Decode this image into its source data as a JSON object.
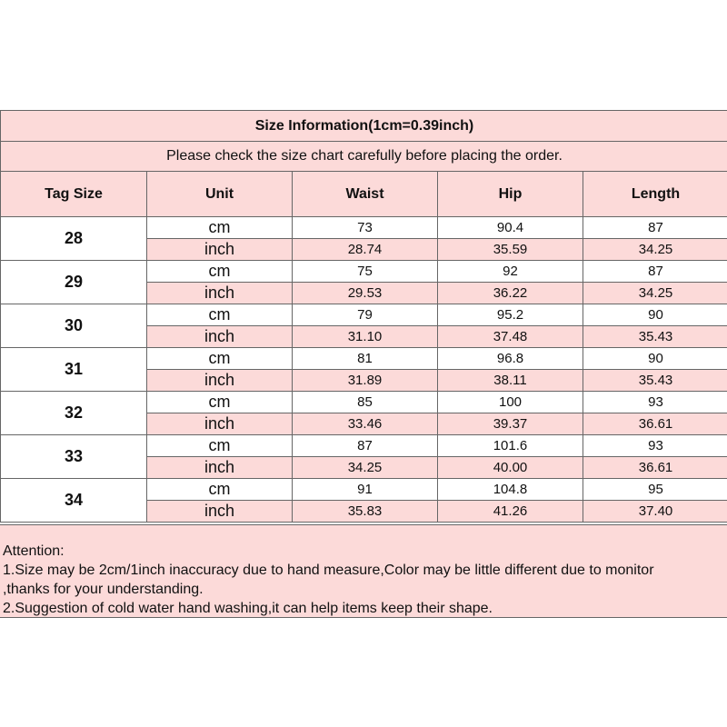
{
  "title": "Size Information(1cm=0.39inch)",
  "subtitle": "Please check the size chart carefully before placing the order.",
  "headers": [
    "Tag Size",
    "Unit",
    "Waist",
    "Hip",
    "Length"
  ],
  "rows": [
    {
      "tag": "28",
      "cm": [
        "73",
        "90.4",
        "87"
      ],
      "inch": [
        "28.74",
        "35.59",
        "34.25"
      ]
    },
    {
      "tag": "29",
      "cm": [
        "75",
        "92",
        "87"
      ],
      "inch": [
        "29.53",
        "36.22",
        "34.25"
      ]
    },
    {
      "tag": "30",
      "cm": [
        "79",
        "95.2",
        "90"
      ],
      "inch": [
        "31.10",
        "37.48",
        "35.43"
      ]
    },
    {
      "tag": "31",
      "cm": [
        "81",
        "96.8",
        "90"
      ],
      "inch": [
        "31.89",
        "38.11",
        "35.43"
      ]
    },
    {
      "tag": "32",
      "cm": [
        "85",
        "100",
        "93"
      ],
      "inch": [
        "33.46",
        "39.37",
        "36.61"
      ]
    },
    {
      "tag": "33",
      "cm": [
        "87",
        "101.6",
        "93"
      ],
      "inch": [
        "34.25",
        "40.00",
        "36.61"
      ]
    },
    {
      "tag": "34",
      "cm": [
        "91",
        "104.8",
        "95"
      ],
      "inch": [
        "35.83",
        "41.26",
        "37.40"
      ]
    }
  ],
  "units": {
    "cm": "cm",
    "inch": "inch"
  },
  "attention": [
    "Attention:",
    "1.Size may be 2cm/1inch inaccuracy due to hand measure,Color may be little different due to monitor",
    ",thanks for your understanding.",
    "2.Suggestion of cold water hand washing,it can help items keep their shape."
  ],
  "colors": {
    "pink": "#fcdad9",
    "border": "#666666"
  }
}
